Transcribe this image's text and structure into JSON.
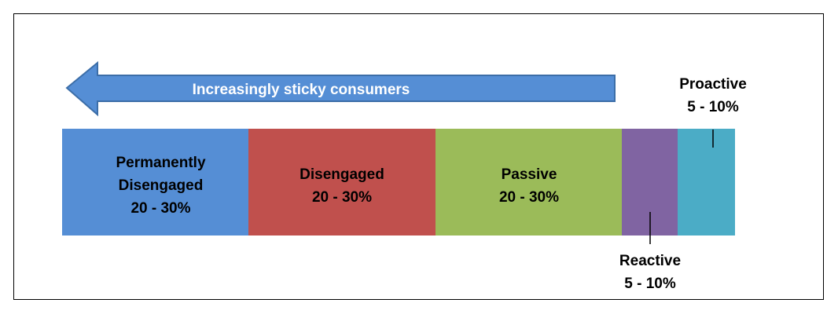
{
  "arrow_label": "Increasingly sticky consumers",
  "segments": [
    {
      "name": "Permanently Disengaged",
      "range": "20 - 30%"
    },
    {
      "name": "Disengaged",
      "range": "20 - 30%"
    },
    {
      "name": "Passive",
      "range": "20 - 30%"
    },
    {
      "name": "Reactive",
      "range": "5 - 10%"
    },
    {
      "name": "Proactive",
      "range": "5 - 10%"
    }
  ]
}
